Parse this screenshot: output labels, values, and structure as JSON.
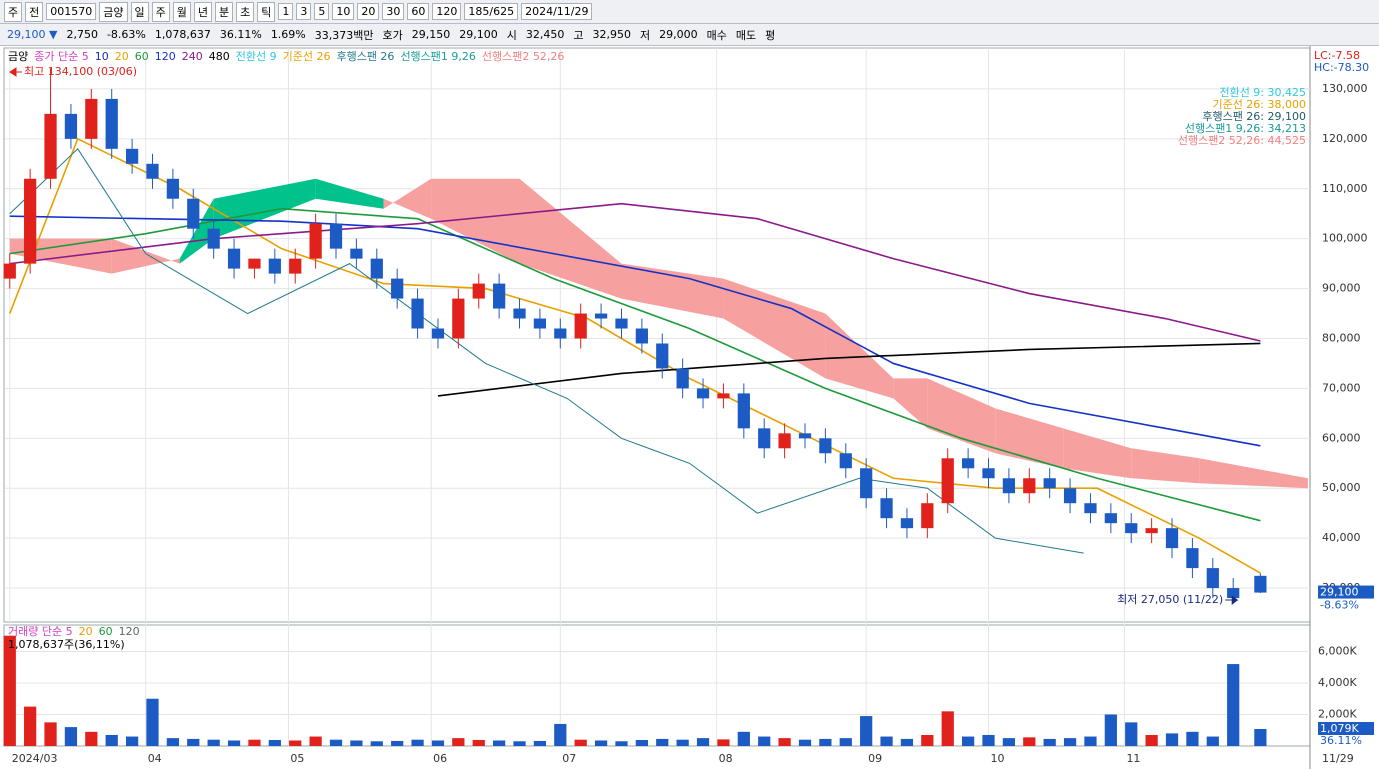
{
  "toolbar": {
    "row1": [
      "주",
      "전",
      "001570",
      "금양",
      "일",
      "주",
      "월",
      "년",
      "분",
      "초",
      "틱",
      "1",
      "3",
      "5",
      "10",
      "20",
      "30",
      "60",
      "120",
      "185/625",
      "2024/11/29"
    ],
    "row2": [
      "29,100 ▼",
      "2,750",
      "-8.63%",
      "1,078,637",
      "36.11%",
      "1.69%",
      "33,373백만",
      "호가",
      "29,150",
      "29,100",
      "시",
      "32,450",
      "고",
      "32,950",
      "저",
      "29,000",
      "매수",
      "매도",
      "평"
    ]
  },
  "chart_data": {
    "type": "candlestick",
    "name": "금양",
    "x": [
      0,
      3,
      6,
      9,
      12,
      15,
      18,
      21,
      24,
      27,
      30,
      33,
      36,
      39,
      42,
      45,
      48,
      51,
      54,
      57,
      60,
      63,
      66,
      69,
      72,
      75,
      78,
      81,
      84,
      87,
      90,
      93,
      96,
      99,
      102,
      105,
      108,
      111,
      114,
      117,
      120,
      123,
      126,
      129,
      132,
      135,
      138,
      141,
      144,
      147,
      150,
      153,
      156,
      159,
      162,
      165,
      168,
      171,
      174,
      177,
      180,
      184
    ],
    "open": [
      92000,
      95000,
      112000,
      125000,
      120000,
      128000,
      118000,
      115000,
      112000,
      108000,
      102000,
      98000,
      94000,
      96000,
      93000,
      96000,
      103000,
      98000,
      96000,
      92000,
      88000,
      82000,
      80000,
      88000,
      91000,
      86000,
      84000,
      82000,
      80000,
      85000,
      84000,
      82000,
      79000,
      74000,
      70000,
      68000,
      69000,
      62000,
      58000,
      61000,
      60000,
      57000,
      54000,
      48000,
      44000,
      42000,
      47000,
      56000,
      54000,
      52000,
      49000,
      52000,
      50000,
      47000,
      45000,
      43000,
      41000,
      42000,
      38000,
      34000,
      30000,
      32450
    ],
    "high": [
      97000,
      114000,
      134100,
      127000,
      130000,
      130000,
      120000,
      117000,
      114000,
      110000,
      104000,
      100000,
      96000,
      98000,
      98000,
      105000,
      105000,
      100000,
      98000,
      94000,
      90000,
      84000,
      90000,
      93000,
      93000,
      88000,
      86000,
      84000,
      87000,
      87000,
      86000,
      84000,
      81000,
      76000,
      72000,
      71000,
      71000,
      64000,
      63000,
      63000,
      62000,
      59000,
      56000,
      50000,
      46000,
      49000,
      58000,
      58000,
      56000,
      54000,
      54000,
      54000,
      52000,
      49000,
      47000,
      45000,
      44000,
      44000,
      40000,
      36000,
      32000,
      32950
    ],
    "low": [
      90000,
      93000,
      110000,
      118000,
      118000,
      116000,
      113000,
      110000,
      106000,
      100000,
      96000,
      92000,
      92000,
      91000,
      91000,
      94000,
      96000,
      94000,
      90000,
      86000,
      80000,
      78000,
      78000,
      86000,
      84000,
      82000,
      80000,
      78000,
      78000,
      82000,
      80000,
      77000,
      72000,
      68000,
      66000,
      66000,
      60000,
      56000,
      56000,
      58000,
      55000,
      52000,
      46000,
      42000,
      40000,
      40000,
      45000,
      52000,
      50000,
      47000,
      47000,
      48000,
      45000,
      43000,
      41000,
      39000,
      39000,
      36000,
      32000,
      28000,
      27050,
      29000
    ],
    "close": [
      95000,
      112000,
      125000,
      120000,
      128000,
      118000,
      115000,
      112000,
      108000,
      102000,
      98000,
      94000,
      96000,
      93000,
      96000,
      103000,
      98000,
      96000,
      92000,
      88000,
      82000,
      80000,
      88000,
      91000,
      86000,
      84000,
      82000,
      80000,
      85000,
      84000,
      82000,
      79000,
      74000,
      70000,
      68000,
      69000,
      62000,
      58000,
      61000,
      60000,
      57000,
      54000,
      48000,
      44000,
      42000,
      47000,
      56000,
      54000,
      52000,
      49000,
      52000,
      50000,
      47000,
      45000,
      43000,
      41000,
      42000,
      38000,
      34000,
      30000,
      28000,
      29100
    ],
    "up_color": "#e0211c",
    "down_color": "#1d5bc4",
    "xlim": [
      -0.7,
      191.3
    ],
    "ylim": [
      23200,
      138200
    ],
    "yticks": [
      {
        "value": 130000,
        "label": "130,000"
      },
      {
        "value": 120000,
        "label": "120,000"
      },
      {
        "value": 110000,
        "label": "110,000"
      },
      {
        "value": 100000,
        "label": "100,000"
      },
      {
        "value": 90000,
        "label": "90,000"
      },
      {
        "value": 80000,
        "label": "80,000"
      },
      {
        "value": 70000,
        "label": "70,000"
      },
      {
        "value": 60000,
        "label": "60,000"
      },
      {
        "value": 50000,
        "label": "50,000"
      },
      {
        "value": 40000,
        "label": "40,000"
      },
      {
        "value": 30000,
        "label": "30,000"
      }
    ],
    "xticks": [
      {
        "value": 0,
        "label": "2024/03"
      },
      {
        "value": 20,
        "label": "04"
      },
      {
        "value": 41,
        "label": "05"
      },
      {
        "value": 62,
        "label": "06"
      },
      {
        "value": 81,
        "label": "07"
      },
      {
        "value": 104,
        "label": "08"
      },
      {
        "value": 126,
        "label": "09"
      },
      {
        "value": 144,
        "label": "10"
      },
      {
        "value": 164,
        "label": "11"
      }
    ],
    "x_end_label": "11/29",
    "lines": [
      {
        "name": "종가 단순 5",
        "color": "#d23cc8"
      },
      {
        "name": "10",
        "color": "#1a2fa8"
      },
      {
        "name": "20",
        "color": "#e8a000",
        "x": [
          0,
          10,
          25,
          40,
          55,
          70,
          85,
          100,
          115,
          130,
          145,
          160,
          175,
          184
        ],
        "values": [
          85000,
          120000,
          110000,
          98000,
          91000,
          90000,
          84000,
          72000,
          62000,
          52000,
          50000,
          50000,
          40000,
          33000
        ]
      },
      {
        "name": "60",
        "color": "#1e9a3c",
        "x": [
          0,
          20,
          40,
          60,
          80,
          100,
          120,
          140,
          160,
          184
        ],
        "values": [
          97000,
          101000,
          106000,
          104000,
          92000,
          82000,
          70000,
          60000,
          52000,
          43500
        ]
      },
      {
        "name": "120",
        "color": "#1432c8",
        "x": [
          0,
          40,
          60,
          80,
          100,
          115,
          130,
          150,
          170,
          184
        ],
        "values": [
          104500,
          103500,
          102000,
          97000,
          92000,
          86000,
          75000,
          67000,
          62000,
          58500
        ]
      },
      {
        "name": "240",
        "color": "#8a1a8a",
        "x": [
          0,
          30,
          60,
          90,
          110,
          130,
          150,
          170,
          184
        ],
        "values": [
          95000,
          100000,
          103000,
          107000,
          104000,
          96000,
          89000,
          84000,
          79500
        ]
      },
      {
        "name": "480",
        "color": "#000000",
        "x": [
          63,
          90,
          120,
          150,
          184
        ],
        "values": [
          68500,
          73000,
          76000,
          77800,
          79000
        ]
      },
      {
        "name": "전환선 9",
        "color": "#2ec8e0"
      },
      {
        "name": "기준선 26",
        "color": "#e8a000"
      },
      {
        "name": "후행스팬 26",
        "color": "#1f7a8c",
        "x": [
          0,
          10,
          20,
          35,
          50,
          60,
          70,
          82,
          90,
          100,
          110,
          125,
          135,
          145,
          158
        ],
        "values": [
          105000,
          118000,
          97000,
          85000,
          95000,
          85000,
          75000,
          68000,
          60000,
          55000,
          45000,
          52000,
          50000,
          40000,
          37000
        ]
      },
      {
        "name": "선행스팬1 9,26",
        "color": "#1a9a9a"
      },
      {
        "name": "선행스팬2 52,26",
        "color": "#f08080"
      }
    ],
    "cloud": {
      "x": [
        0,
        15,
        25,
        30,
        45,
        55,
        62,
        75,
        90,
        105,
        120,
        130,
        135,
        145,
        155,
        165,
        175,
        191
      ],
      "span1": [
        97000,
        93000,
        96000,
        108000,
        112000,
        108000,
        104000,
        95000,
        88000,
        84000,
        72000,
        68000,
        62000,
        57000,
        54000,
        52000,
        51000,
        50000
      ],
      "span2": [
        100000,
        100000,
        95000,
        100000,
        108000,
        106000,
        112000,
        112000,
        95000,
        92000,
        85000,
        72000,
        72000,
        66000,
        62000,
        58000,
        56000,
        52000
      ],
      "up_color": "#00c28a",
      "down_color": "#f6a0a0"
    },
    "annotations": {
      "high": "최고 134,100 (03/06)",
      "low": "최저 27,050 (11/22)"
    },
    "last_price": {
      "label": "29,100",
      "change": "-8.63%"
    },
    "lc": "LC:-7.58",
    "hc": "HC:-78.30",
    "indicator_values": [
      {
        "text": "전환선 9: 30,425",
        "color": "#2ec8e0"
      },
      {
        "text": "기준선 26: 38,000",
        "color": "#e8a000"
      },
      {
        "text": "후행스팬 26: 29,100",
        "color": "#1f5a6c"
      },
      {
        "text": "선행스팬1 9,26: 34,213",
        "color": "#1a9a9a"
      },
      {
        "text": "선행스팬2 52,26: 44,525",
        "color": "#f08080"
      }
    ],
    "volume": {
      "title": "거래량 단순 5",
      "ma_labels": [
        "20",
        "60",
        "120"
      ],
      "info": "1,078,637주(36,11%)",
      "last_label": "1,079K",
      "last_ratio": "36.11%",
      "values": [
        7000000,
        2500000,
        1500000,
        1200000,
        900000,
        700000,
        600000,
        3000000,
        500000,
        450000,
        400000,
        350000,
        400000,
        380000,
        350000,
        600000,
        400000,
        350000,
        300000,
        320000,
        400000,
        350000,
        500000,
        380000,
        350000,
        300000,
        320000,
        1400000,
        400000,
        350000,
        300000,
        380000,
        450000,
        400000,
        500000,
        420000,
        900000,
        600000,
        500000,
        400000,
        450000,
        500000,
        1900000,
        600000,
        450000,
        700000,
        2200000,
        600000,
        700000,
        500000,
        550000,
        450000,
        500000,
        600000,
        2000000,
        1500000,
        700000,
        800000,
        900000,
        600000,
        5200000,
        1078637
      ],
      "ylim": [
        0,
        7680000
      ],
      "yticks": [
        {
          "value": 2000000,
          "label": "2,000K"
        },
        {
          "value": 4000000,
          "label": "4,000K"
        },
        {
          "value": 6000000,
          "label": "6,000K"
        }
      ]
    }
  }
}
